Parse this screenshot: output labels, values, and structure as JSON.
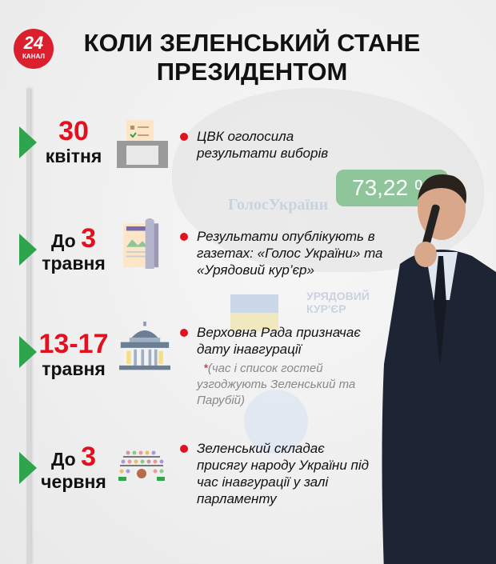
{
  "logo": {
    "number": "24",
    "label": "КАНАЛ"
  },
  "title": "КОЛИ ЗЕЛЕНСЬКИЙ СТАНЕ ПРЕЗИДЕНТОМ",
  "result_percent": "73,22 %",
  "watermarks": {
    "golos": "ГолосУкраїни",
    "uryadovyi": "УРЯДОВИЙ КУР'ЄР"
  },
  "events": [
    {
      "prefix": "",
      "number": "30",
      "month": "квітня",
      "icon": "ballot-box-icon",
      "text": "ЦВК оголосила результати виборів"
    },
    {
      "prefix": "До",
      "number": "3",
      "month": "травня",
      "icon": "newspaper-icon",
      "text": "Результати опублікують в газетах: «Голос України» та «Урядовий кур’єр»"
    },
    {
      "prefix": "",
      "number": "13-17",
      "month": "травня",
      "icon": "parliament-building-icon",
      "text": "Верховна Рада призначає дату інавгурації",
      "note_mark": "*",
      "note": "(час і список гостей узгоджують Зеленський та Парубій)"
    },
    {
      "prefix": "До",
      "number": "3",
      "month": "червня",
      "icon": "parliament-hall-icon",
      "text": "Зеленський складає присягу народу України під час інавгурації у залі парламенту"
    }
  ],
  "colors": {
    "accent": "#e3101f",
    "arrow": "#2ea44f",
    "percent_box": "#8fc59a",
    "logo": "#d9202c"
  }
}
